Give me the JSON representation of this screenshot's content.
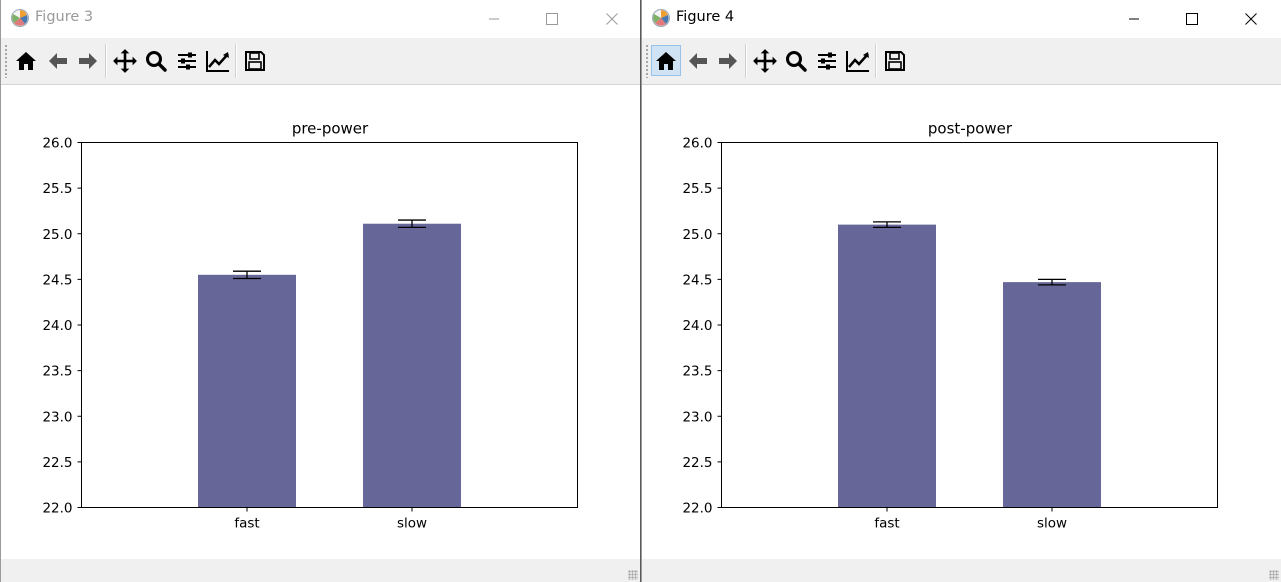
{
  "colors": {
    "bar": "#666699",
    "axis": "#000000",
    "toolbar_bg": "#f0f0f0"
  },
  "toolbar_icons": [
    "home-icon",
    "back-arrow-icon",
    "forward-arrow-icon",
    "pan-move-icon",
    "zoom-magnifier-icon",
    "subplots-sliders-icon",
    "edit-axes-line-icon",
    "save-floppy-icon"
  ],
  "windows": [
    {
      "title": "Figure 3",
      "active": false,
      "chart_data": {
        "type": "bar",
        "title": "pre-power",
        "xlabel": "",
        "ylabel": "",
        "categories": [
          "fast",
          "slow"
        ],
        "values": [
          24.55,
          25.11
        ],
        "errors": [
          0.04,
          0.04
        ],
        "ylim": [
          22.0,
          26.0
        ],
        "yticks": [
          "22.0",
          "22.5",
          "23.0",
          "23.5",
          "24.0",
          "24.5",
          "25.0",
          "25.5",
          "26.0"
        ],
        "grid": false
      }
    },
    {
      "title": "Figure 4",
      "active": true,
      "chart_data": {
        "type": "bar",
        "title": "post-power",
        "xlabel": "",
        "ylabel": "",
        "categories": [
          "fast",
          "slow"
        ],
        "values": [
          25.1,
          24.47
        ],
        "errors": [
          0.03,
          0.03
        ],
        "ylim": [
          22.0,
          26.0
        ],
        "yticks": [
          "22.0",
          "22.5",
          "23.0",
          "23.5",
          "24.0",
          "24.5",
          "25.0",
          "25.5",
          "26.0"
        ],
        "grid": false
      }
    }
  ]
}
